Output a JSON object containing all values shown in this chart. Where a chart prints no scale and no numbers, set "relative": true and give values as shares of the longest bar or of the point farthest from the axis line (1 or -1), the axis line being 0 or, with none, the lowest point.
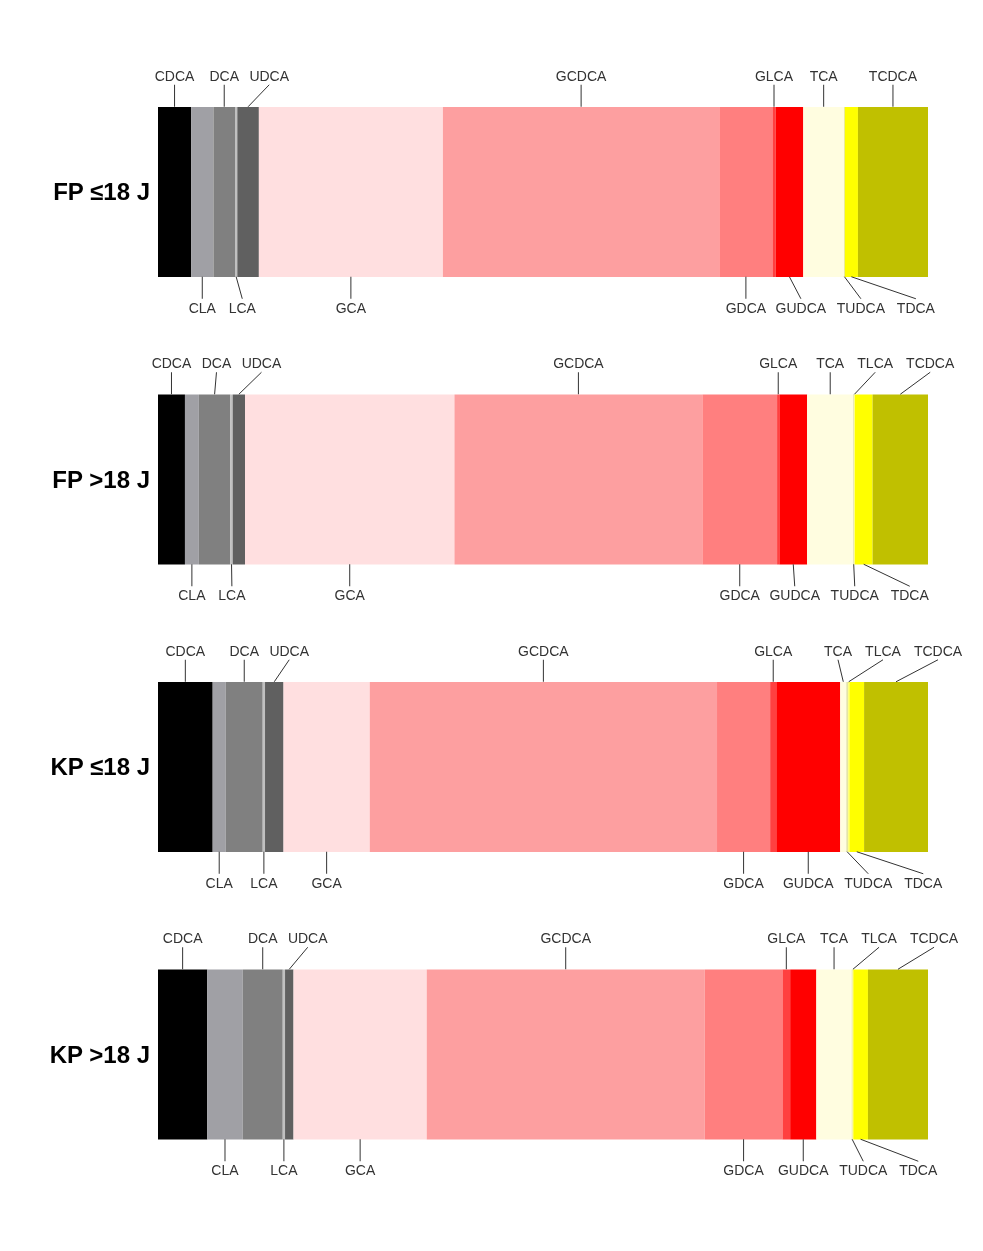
{
  "chart_data": {
    "type": "bar",
    "orientation": "horizontal",
    "stacked": true,
    "relative": true,
    "categories": [
      "FP ≤18 J",
      "FP >18 J",
      "KP ≤18 J",
      "KP >18 J"
    ],
    "series": [
      {
        "name": "CDCA",
        "color": "#000000",
        "values": [
          0.043,
          0.035,
          0.071,
          0.064
        ]
      },
      {
        "name": "CLA",
        "color": "#a0a0a5",
        "values": [
          0.029,
          0.018,
          0.017,
          0.046
        ]
      },
      {
        "name": "DCA",
        "color": "#808080",
        "values": [
          0.028,
          0.041,
          0.048,
          0.052
        ]
      },
      {
        "name": "LCA",
        "color": "#c0c0c0",
        "values": [
          0.003,
          0.003,
          0.003,
          0.003
        ]
      },
      {
        "name": "UDCA",
        "color": "#606060",
        "values": [
          0.028,
          0.016,
          0.024,
          0.011
        ]
      },
      {
        "name": "GCA",
        "color": "#ffdfe0",
        "values": [
          0.239,
          0.272,
          0.112,
          0.173
        ]
      },
      {
        "name": "GCDCA",
        "color": "#fd9fa0",
        "values": [
          0.359,
          0.322,
          0.451,
          0.361
        ]
      },
      {
        "name": "GDCA",
        "color": "#ff7f7f",
        "values": [
          0.069,
          0.097,
          0.069,
          0.101
        ]
      },
      {
        "name": "GLCA",
        "color": "#ff4040",
        "values": [
          0.004,
          0.003,
          0.008,
          0.01
        ]
      },
      {
        "name": "GUDCA",
        "color": "#ff0000",
        "values": [
          0.036,
          0.036,
          0.083,
          0.034
        ]
      },
      {
        "name": "TCA",
        "color": "#fffde0",
        "values": [
          0.053,
          0.06,
          0.008,
          0.046
        ]
      },
      {
        "name": "TUDCA",
        "color": "#e0e0a0",
        "values": [
          0.001,
          0.001,
          0.002,
          0.001
        ]
      },
      {
        "name": "TLCA",
        "color": "#ffff80",
        "values": [
          null,
          0.001,
          0.002,
          0.001
        ]
      },
      {
        "name": "TDCA",
        "color": "#ffff00",
        "values": [
          0.017,
          0.023,
          0.019,
          0.019
        ]
      },
      {
        "name": "TCDCA",
        "color": "#c0c000",
        "values": [
          0.091,
          0.072,
          0.083,
          0.078
        ]
      }
    ]
  }
}
